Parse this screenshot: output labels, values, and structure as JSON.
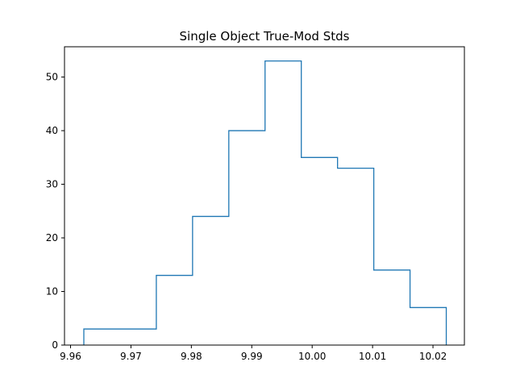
{
  "chart_data": {
    "type": "histogram",
    "title": "Single Object True-Mod Stds",
    "xlabel": "",
    "ylabel": "",
    "histtype": "step",
    "bin_edges": [
      9.9622,
      9.9682,
      9.9742,
      9.9802,
      9.9862,
      9.9922,
      9.9982,
      10.0042,
      10.0102,
      10.0162,
      10.0222
    ],
    "counts": [
      3,
      3,
      13,
      24,
      40,
      53,
      35,
      33,
      14,
      7
    ],
    "xlim": [
      9.959,
      10.0252
    ],
    "ylim": [
      0,
      55.65
    ],
    "x_ticks": [
      9.96,
      9.97,
      9.98,
      9.99,
      10.0,
      10.01,
      10.02
    ],
    "x_tick_labels": [
      "9.96",
      "9.97",
      "9.98",
      "9.99",
      "10.00",
      "10.01",
      "10.02"
    ],
    "y_ticks": [
      0,
      10,
      20,
      30,
      40,
      50
    ],
    "y_tick_labels": [
      "0",
      "10",
      "20",
      "30",
      "40",
      "50"
    ],
    "line_color": "#1f77b4",
    "grid": false,
    "legend": "none"
  }
}
